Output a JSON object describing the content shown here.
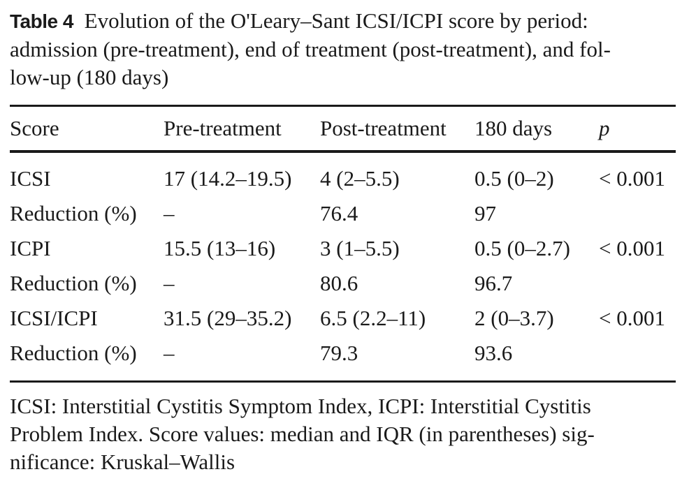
{
  "caption": {
    "label": "Table 4",
    "line1": "Evolution of the O'Leary–Sant ICSI/ICPI score by period:",
    "line2": "admission (pre-treatment), end of treatment (post-treatment), and fol-",
    "line3": "low-up (180 days)"
  },
  "table": {
    "headers": [
      "Score",
      "Pre-treatment",
      "Post-treatment",
      "180 days",
      "p"
    ],
    "rows": [
      [
        "ICSI",
        "17 (14.2–19.5)",
        "4 (2–5.5)",
        "0.5 (0–2)",
        "< 0.001"
      ],
      [
        "Reduction (%)",
        "–",
        "76.4",
        "97",
        ""
      ],
      [
        "ICPI",
        "15.5 (13–16)",
        "3 (1–5.5)",
        "0.5 (0–2.7)",
        "< 0.001"
      ],
      [
        "Reduction (%)",
        "–",
        "80.6",
        "96.7",
        ""
      ],
      [
        "ICSI/ICPI",
        "31.5 (29–35.2)",
        "6.5 (2.2–11)",
        "2 (0–3.7)",
        "< 0.001"
      ],
      [
        "Reduction (%)",
        "–",
        "79.3",
        "93.6",
        ""
      ]
    ]
  },
  "footnote": {
    "line1": "ICSI: Interstitial Cystitis Symptom Index, ICPI: Interstitial Cystitis",
    "line2": "Problem Index. Score values: median and IQR (in parentheses) sig-",
    "line3": "nificance: Kruskal–Wallis"
  }
}
